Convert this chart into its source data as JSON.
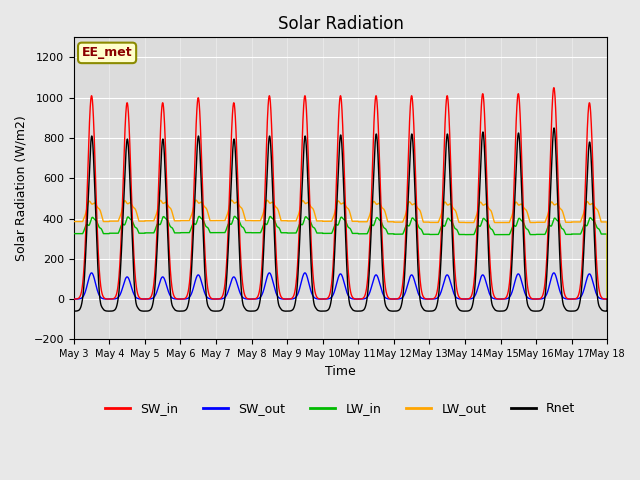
{
  "title": "Solar Radiation",
  "xlabel": "Time",
  "ylabel": "Solar Radiation (W/m2)",
  "ylim": [
    -200,
    1300
  ],
  "yticks": [
    -200,
    0,
    200,
    400,
    600,
    800,
    1000,
    1200
  ],
  "annotation_text": "EE_met",
  "annotation_box_color": "#FFFFCC",
  "annotation_box_edge": "#8B8B00",
  "bg_color": "#E8E8E8",
  "plot_bg_color": "#DCDCDC",
  "legend_entries": [
    "SW_in",
    "SW_out",
    "LW_in",
    "LW_out",
    "Rnet"
  ],
  "legend_colors": [
    "#FF0000",
    "#0000FF",
    "#00BB00",
    "#FFA500",
    "#000000"
  ],
  "num_days": 15,
  "start_day": 3,
  "tick_fontsize": 8,
  "label_fontsize": 9,
  "title_fontsize": 12
}
